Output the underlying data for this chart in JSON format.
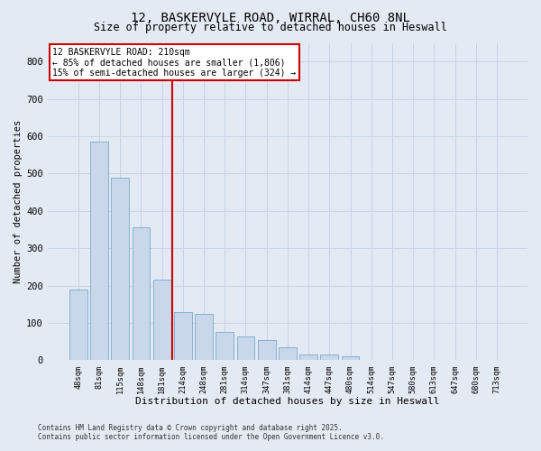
{
  "title_line1": "12, BASKERVYLE ROAD, WIRRAL, CH60 8NL",
  "title_line2": "Size of property relative to detached houses in Heswall",
  "xlabel": "Distribution of detached houses by size in Heswall",
  "ylabel": "Number of detached properties",
  "categories": [
    "48sqm",
    "81sqm",
    "115sqm",
    "148sqm",
    "181sqm",
    "214sqm",
    "248sqm",
    "281sqm",
    "314sqm",
    "347sqm",
    "381sqm",
    "414sqm",
    "447sqm",
    "480sqm",
    "514sqm",
    "547sqm",
    "580sqm",
    "613sqm",
    "647sqm",
    "680sqm",
    "713sqm"
  ],
  "values": [
    190,
    585,
    490,
    355,
    215,
    130,
    125,
    75,
    65,
    55,
    35,
    15,
    15,
    10,
    0,
    0,
    0,
    0,
    0,
    0,
    0
  ],
  "bar_color": "#c8d8ea",
  "bar_edge_color": "#7aaac8",
  "grid_color": "#c8d4e4",
  "background_color": "#e4eaf4",
  "red_line_index": 5,
  "annotation_text": "12 BASKERVYLE ROAD: 210sqm\n← 85% of detached houses are smaller (1,806)\n15% of semi-detached houses are larger (324) →",
  "annotation_box_facecolor": "#ffffff",
  "annotation_box_edgecolor": "#cc0000",
  "ylim": [
    0,
    850
  ],
  "yticks": [
    0,
    100,
    200,
    300,
    400,
    500,
    600,
    700,
    800
  ],
  "footer_line1": "Contains HM Land Registry data © Crown copyright and database right 2025.",
  "footer_line2": "Contains public sector information licensed under the Open Government Licence v3.0."
}
